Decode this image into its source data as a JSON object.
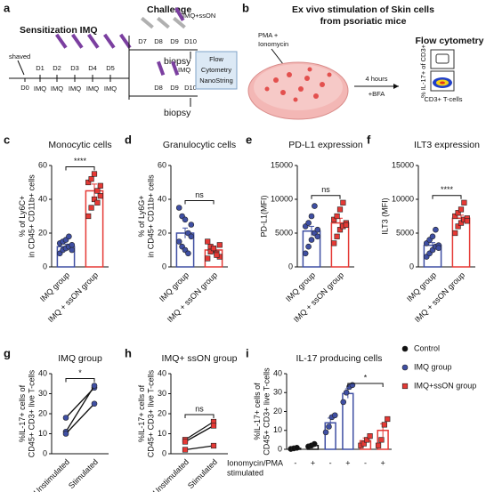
{
  "diagram_a": {
    "panel": "a",
    "title": "Sensitization IMQ",
    "shaved": "shaved",
    "days": [
      "D0",
      "D1",
      "D2",
      "D3",
      "D4",
      "D5"
    ],
    "doses": [
      "IMQ",
      "IMQ",
      "IMQ",
      "IMQ",
      "IMQ"
    ],
    "challenge": "Challenge",
    "branch_top": {
      "days": [
        "D7",
        "D8",
        "D9",
        "D10"
      ],
      "treatment": "IMQ+ssON",
      "sample": "biopsy"
    },
    "branch_bottom": {
      "days": [
        "D8",
        "D9",
        "D10"
      ],
      "treatment": "IMQ",
      "sample": "biopsy"
    },
    "readout": [
      "Flow",
      "Cytometry",
      "NanoString"
    ]
  },
  "diagram_b": {
    "panel": "b",
    "title": [
      "Ex vivo stimulation of Skin cells",
      "from psoriatic mice"
    ],
    "stimulus": [
      "PMA +",
      "Ionomycin"
    ],
    "duration": "4 hours",
    "additive": "+BFA",
    "readout": "Flow cytometry",
    "y_label": "% IL-17+ of CD3+",
    "x_label": "CD3+ T-cells"
  },
  "chart_data": [
    {
      "type": "bar_dot",
      "panel": "c",
      "title": "Monocytic cells",
      "ylabel": [
        "% of Ly6C+",
        "in CD45+ CD11b+ cells"
      ],
      "categories": [
        "IMQ group",
        "IMQ + ssON group"
      ],
      "values": [
        12,
        45
      ],
      "errors": [
        1.5,
        4
      ],
      "points": [
        [
          8,
          10,
          11,
          12,
          13,
          14,
          15,
          16,
          18,
          10
        ],
        [
          30,
          35,
          40,
          45,
          48,
          50,
          52,
          55,
          38,
          42
        ]
      ],
      "colors": [
        "#3f4fa3",
        "#e53935"
      ],
      "markers": [
        "circle",
        "square"
      ],
      "ylim": [
        0,
        60
      ],
      "yticks": [
        0,
        20,
        40,
        60
      ],
      "significance": "****"
    },
    {
      "type": "bar_dot",
      "panel": "d",
      "title": "Granulocytic cells",
      "ylabel": [
        "% of Ly6G+",
        "in CD45+ CD11b+ cells"
      ],
      "categories": [
        "IMQ group",
        "IMQ + ssON group"
      ],
      "values": [
        20,
        10
      ],
      "errors": [
        3,
        1.2
      ],
      "points": [
        [
          35,
          30,
          28,
          20,
          18,
          15,
          12,
          10,
          8,
          25
        ],
        [
          15,
          12,
          10,
          8,
          6,
          5,
          9,
          11,
          7,
          13
        ]
      ],
      "colors": [
        "#3f4fa3",
        "#e53935"
      ],
      "markers": [
        "circle",
        "square"
      ],
      "ylim": [
        0,
        60
      ],
      "yticks": [
        0,
        20,
        40,
        60
      ],
      "significance": "ns"
    },
    {
      "type": "bar_dot",
      "panel": "e",
      "title": "PD-L1 expression",
      "ylabel": [
        "PD-L1(MFI)"
      ],
      "categories": [
        "IMQ group",
        "IMQ + ssON group"
      ],
      "values": [
        5300,
        6500
      ],
      "errors": [
        700,
        700
      ],
      "points": [
        [
          2000,
          3000,
          4000,
          5000,
          5500,
          6000,
          6500,
          7500,
          9000,
          4500
        ],
        [
          3500,
          4500,
          5500,
          6000,
          6500,
          7000,
          7500,
          8500,
          9500,
          6200
        ]
      ],
      "colors": [
        "#3f4fa3",
        "#e53935"
      ],
      "markers": [
        "circle",
        "square"
      ],
      "ylim": [
        0,
        15000
      ],
      "yticks": [
        0,
        5000,
        10000,
        15000
      ],
      "significance": "ns"
    },
    {
      "type": "bar_dot",
      "panel": "f",
      "title": "ILT3 expression",
      "ylabel": [
        "ILT3 (MFI)"
      ],
      "categories": [
        "IMQ group",
        "IMQ + ssON group"
      ],
      "values": [
        3200,
        7200
      ],
      "errors": [
        400,
        450
      ],
      "points": [
        [
          1500,
          2000,
          2500,
          3000,
          3200,
          3500,
          4000,
          4500,
          5500,
          2800
        ],
        [
          5000,
          6000,
          6500,
          7000,
          7200,
          7500,
          8000,
          8500,
          9500,
          6800
        ]
      ],
      "colors": [
        "#3f4fa3",
        "#e53935"
      ],
      "markers": [
        "circle",
        "square"
      ],
      "ylim": [
        0,
        15000
      ],
      "yticks": [
        0,
        5000,
        10000,
        15000
      ],
      "significance": "****"
    },
    {
      "type": "paired",
      "panel": "g",
      "title": "IMQ group",
      "ylabel": [
        "%IL-17+ cells of",
        "CD45+ CD3+ live T-cells"
      ],
      "categories": [
        "Unstimulated",
        "Stimulated"
      ],
      "color": "#3f4fa3",
      "marker": "circle",
      "series": [
        {
          "values": [
            18,
            33
          ]
        },
        {
          "values": [
            11,
            34
          ]
        },
        {
          "values": [
            10,
            25
          ]
        }
      ],
      "ylim": [
        0,
        40
      ],
      "yticks": [
        0,
        10,
        20,
        30,
        40
      ],
      "significance": "*"
    },
    {
      "type": "paired",
      "panel": "h",
      "title": "IMQ+ ssON group",
      "ylabel": [
        "%IL-17+ cells of",
        "CD45+ CD3+ live T-cells"
      ],
      "categories": [
        "Unstimulated",
        "Stimulated"
      ],
      "color": "#e53935",
      "marker": "square",
      "series": [
        {
          "values": [
            7,
            16
          ]
        },
        {
          "values": [
            6,
            14
          ]
        },
        {
          "values": [
            2,
            4
          ]
        }
      ],
      "ylim": [
        0,
        40
      ],
      "yticks": [
        0,
        10,
        20,
        30,
        40
      ],
      "significance": "ns"
    },
    {
      "type": "grouped_bar_dot",
      "panel": "i",
      "title": "IL-17 producing cells",
      "ylabel": [
        "%IL-17+ cells of",
        "CD45+ CD3+ live T-cells"
      ],
      "categories": [
        "-",
        "+"
      ],
      "row_label": [
        "Ionomycin/PMA",
        "stimulated"
      ],
      "series": [
        {
          "name": "Control",
          "color": "#111111",
          "marker": "circle",
          "values": [
            0.5,
            2
          ],
          "errors": [
            0.3,
            0.4
          ],
          "points": [
            [
              0.2,
              0.5,
              0.8
            ],
            [
              1.5,
              2,
              2.8
            ]
          ]
        },
        {
          "name": "IMQ group",
          "color": "#3f4fa3",
          "marker": "circle",
          "values": [
            14,
            29.5
          ],
          "errors": [
            2.5,
            2.5
          ],
          "points": [
            [
              9,
              12,
              17,
              18
            ],
            [
              25,
              30,
              33,
              34
            ]
          ]
        },
        {
          "name": "IMQ+ssON group",
          "color": "#e53935",
          "marker": "square",
          "values": [
            4.5,
            10
          ],
          "errors": [
            1.5,
            3.5
          ],
          "points": [
            [
              2,
              3,
              5,
              7
            ],
            [
              2,
              5,
              13,
              16
            ]
          ]
        }
      ],
      "ylim": [
        0,
        40
      ],
      "yticks": [
        0,
        10,
        20,
        30,
        40
      ],
      "significance": "*"
    }
  ]
}
